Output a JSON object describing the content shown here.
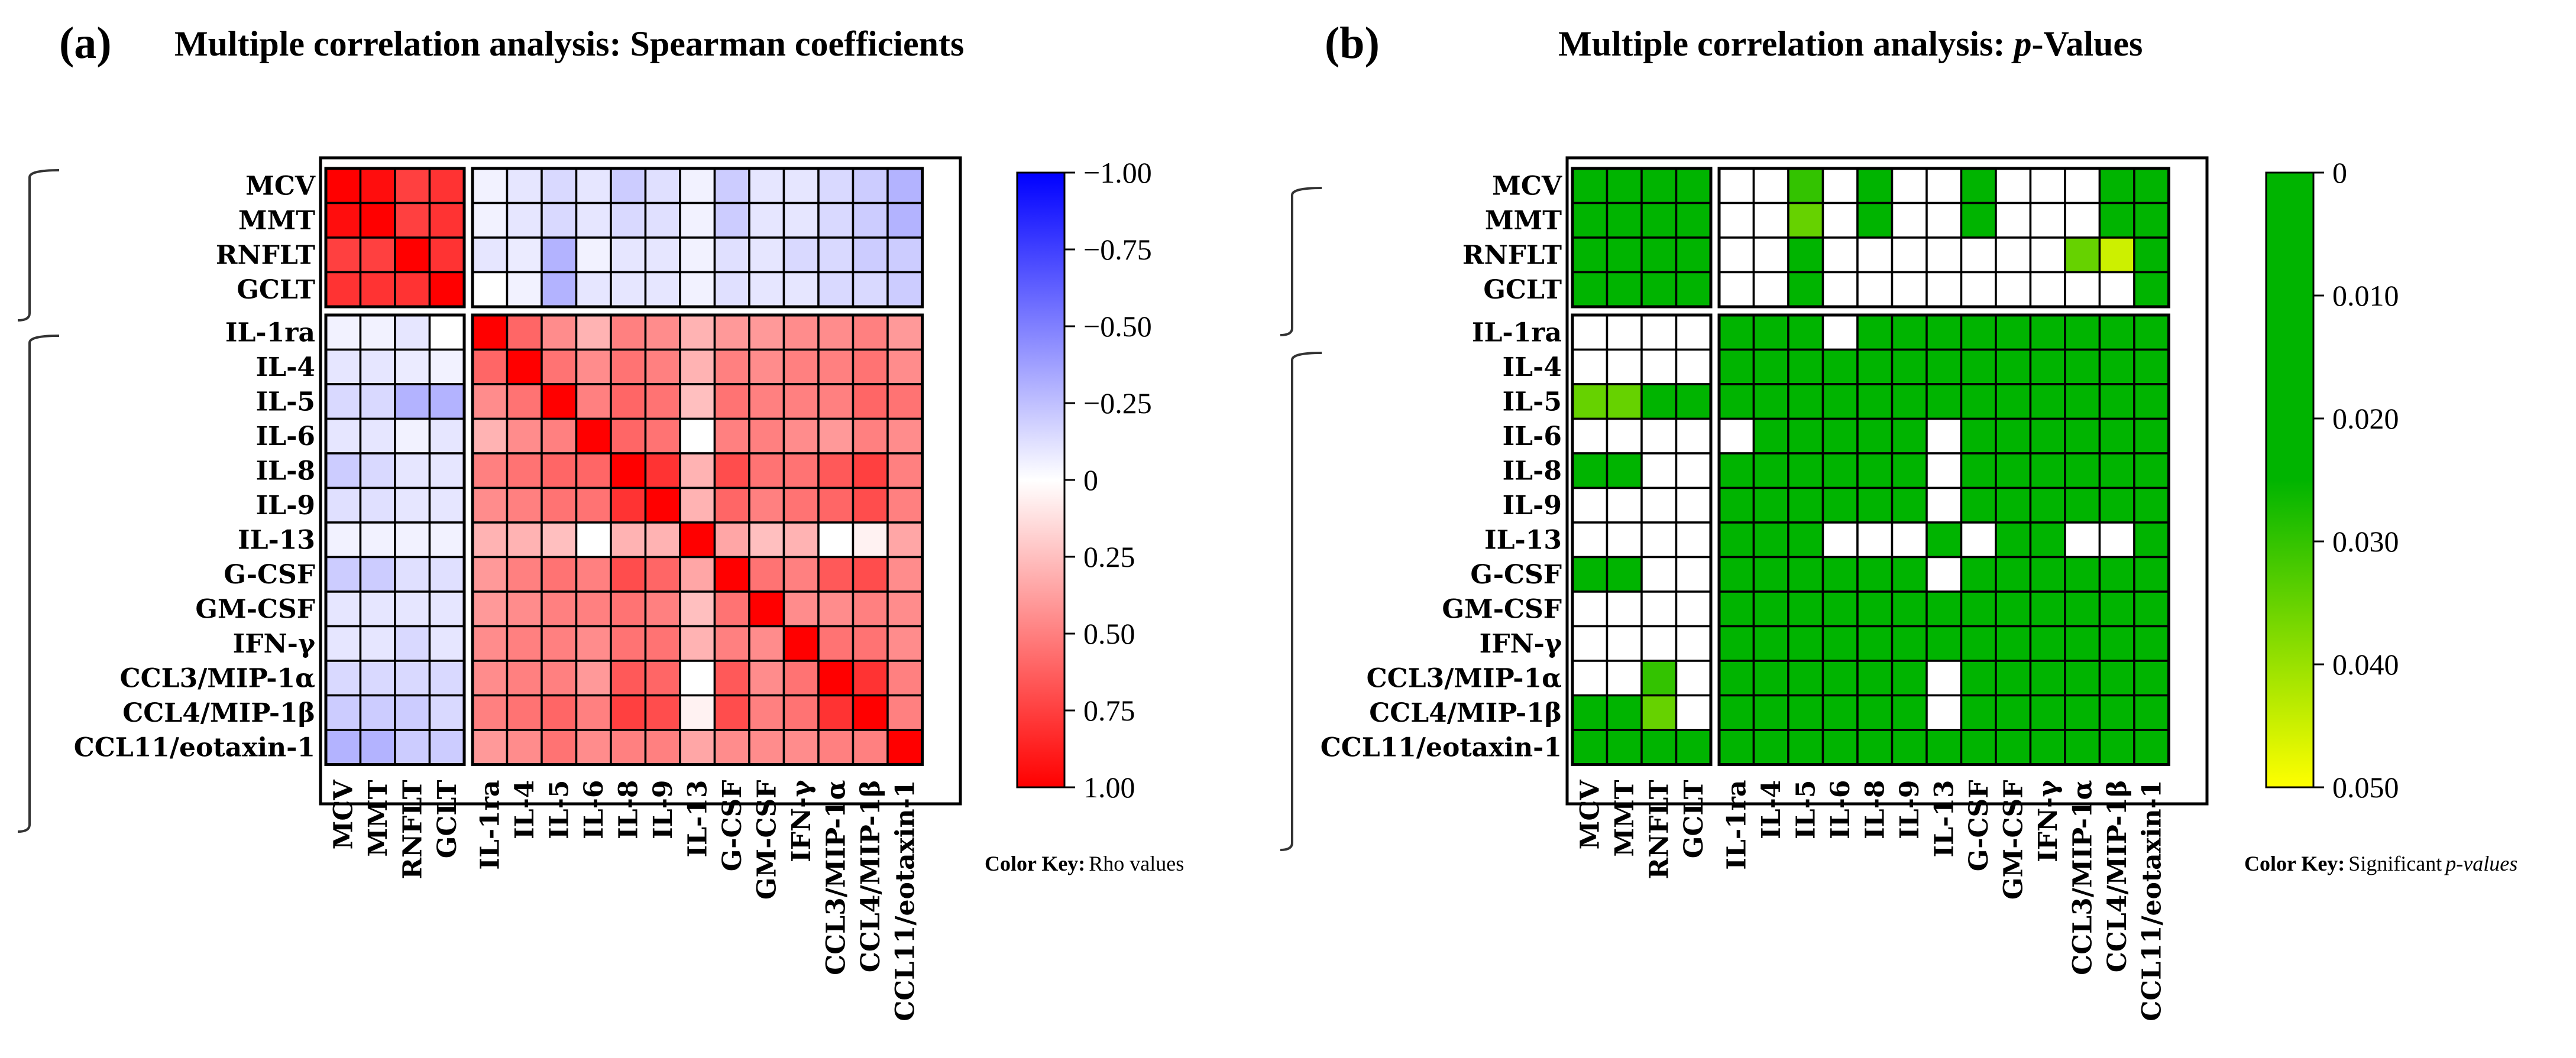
{
  "chart_data": [
    {
      "type": "heatmap",
      "panel": "(a)",
      "title": "Multiple correlation analysis: Spearman coefficients",
      "rows": [
        "MCV",
        "MMT",
        "RNFLT",
        "GCLT",
        "IL-1ra",
        "IL-4",
        "IL-5",
        "IL-6",
        "IL-8",
        "IL-9",
        "IL-13",
        "G-CSF",
        "GM-CSF",
        "IFN-γ",
        "CCL3/MIP-1α",
        "CCL4/MIP-1β",
        "CCL11/eotaxin-1"
      ],
      "cols": [
        "MCV",
        "MMT",
        "RNFLT",
        "GCLT",
        "IL-1ra",
        "IL-4",
        "IL-5",
        "IL-6",
        "IL-8",
        "IL-9",
        "IL-13",
        "G-CSF",
        "GM-CSF",
        "IFN-γ",
        "CCL3/MIP-1α",
        "CCL4/MIP-1β",
        "CCL11/eotaxin-1"
      ],
      "values": [
        [
          1.0,
          0.95,
          0.75,
          0.8,
          -0.05,
          -0.1,
          -0.15,
          -0.1,
          -0.2,
          -0.12,
          -0.05,
          -0.2,
          -0.1,
          -0.1,
          -0.15,
          -0.2,
          -0.3
        ],
        [
          0.95,
          1.0,
          0.75,
          0.8,
          -0.05,
          -0.1,
          -0.15,
          -0.1,
          -0.15,
          -0.12,
          -0.05,
          -0.2,
          -0.1,
          -0.1,
          -0.15,
          -0.2,
          -0.3
        ],
        [
          0.75,
          0.75,
          1.0,
          0.8,
          -0.1,
          -0.08,
          -0.3,
          -0.05,
          -0.1,
          -0.1,
          -0.05,
          -0.12,
          -0.1,
          -0.15,
          -0.15,
          -0.2,
          -0.2
        ],
        [
          0.8,
          0.8,
          0.8,
          1.0,
          0.0,
          -0.05,
          -0.3,
          -0.1,
          -0.1,
          -0.1,
          -0.05,
          -0.12,
          -0.1,
          -0.1,
          -0.15,
          -0.15,
          -0.2
        ],
        [
          -0.05,
          -0.05,
          -0.1,
          0.0,
          1.0,
          0.6,
          0.45,
          0.3,
          0.5,
          0.45,
          0.3,
          0.4,
          0.4,
          0.45,
          0.45,
          0.5,
          0.4
        ],
        [
          -0.1,
          -0.1,
          -0.08,
          -0.05,
          0.6,
          1.0,
          0.55,
          0.45,
          0.55,
          0.5,
          0.3,
          0.5,
          0.45,
          0.5,
          0.5,
          0.55,
          0.45
        ],
        [
          -0.15,
          -0.15,
          -0.3,
          -0.3,
          0.45,
          0.55,
          1.0,
          0.5,
          0.6,
          0.55,
          0.25,
          0.55,
          0.5,
          0.5,
          0.5,
          0.6,
          0.55
        ],
        [
          -0.1,
          -0.1,
          -0.05,
          -0.1,
          0.3,
          0.45,
          0.5,
          1.0,
          0.6,
          0.55,
          0.0,
          0.5,
          0.5,
          0.45,
          0.4,
          0.5,
          0.45
        ],
        [
          -0.2,
          -0.15,
          -0.1,
          -0.1,
          0.5,
          0.55,
          0.6,
          0.6,
          1.0,
          0.8,
          0.3,
          0.7,
          0.55,
          0.55,
          0.65,
          0.75,
          0.5
        ],
        [
          -0.12,
          -0.12,
          -0.1,
          -0.1,
          0.45,
          0.5,
          0.55,
          0.55,
          0.8,
          1.0,
          0.3,
          0.6,
          0.5,
          0.55,
          0.6,
          0.7,
          0.5
        ],
        [
          -0.05,
          -0.05,
          -0.05,
          -0.05,
          0.3,
          0.3,
          0.25,
          0.0,
          0.3,
          0.3,
          1.0,
          0.35,
          0.25,
          0.3,
          0.0,
          0.05,
          0.35
        ],
        [
          -0.2,
          -0.2,
          -0.12,
          -0.12,
          0.4,
          0.5,
          0.55,
          0.5,
          0.7,
          0.6,
          0.35,
          1.0,
          0.55,
          0.5,
          0.65,
          0.7,
          0.45
        ],
        [
          -0.1,
          -0.1,
          -0.1,
          -0.1,
          0.4,
          0.45,
          0.5,
          0.5,
          0.55,
          0.5,
          0.25,
          0.55,
          1.0,
          0.45,
          0.45,
          0.5,
          0.45
        ],
        [
          -0.1,
          -0.1,
          -0.15,
          -0.1,
          0.45,
          0.5,
          0.5,
          0.45,
          0.55,
          0.55,
          0.3,
          0.5,
          0.45,
          1.0,
          0.55,
          0.55,
          0.45
        ],
        [
          -0.15,
          -0.15,
          -0.15,
          -0.15,
          0.45,
          0.5,
          0.5,
          0.4,
          0.65,
          0.6,
          0.0,
          0.65,
          0.45,
          0.55,
          1.0,
          0.8,
          0.5
        ],
        [
          -0.2,
          -0.2,
          -0.2,
          -0.15,
          0.5,
          0.55,
          0.6,
          0.5,
          0.75,
          0.7,
          0.05,
          0.7,
          0.5,
          0.55,
          0.8,
          1.0,
          0.5
        ],
        [
          -0.3,
          -0.3,
          -0.2,
          -0.2,
          0.4,
          0.45,
          0.55,
          0.45,
          0.5,
          0.5,
          0.35,
          0.45,
          0.45,
          0.45,
          0.5,
          0.5,
          1.0
        ]
      ],
      "colorbar": {
        "ticks": [
          "−1.00",
          "−0.75",
          "−0.50",
          "−0.25",
          "0",
          "0.25",
          "0.50",
          "0.75",
          "1.00"
        ],
        "range": [
          -1.0,
          1.0
        ],
        "colors": [
          "#0000ff",
          "#ffffff",
          "#ff0000"
        ]
      },
      "color_key_label": "Color Key:",
      "color_key_text": "Rho values"
    },
    {
      "type": "heatmap",
      "panel": "(b)",
      "title_prefix": "Multiple correlation analysis: ",
      "title_italic": "p",
      "title_suffix": "-Values",
      "rows": [
        "MCV",
        "MMT",
        "RNFLT",
        "GCLT",
        "IL-1ra",
        "IL-4",
        "IL-5",
        "IL-6",
        "IL-8",
        "IL-9",
        "IL-13",
        "G-CSF",
        "GM-CSF",
        "IFN-γ",
        "CCL3/MIP-1α",
        "CCL4/MIP-1β",
        "CCL11/eotaxin-1"
      ],
      "cols": [
        "MCV",
        "MMT",
        "RNFLT",
        "GCLT",
        "IL-1ra",
        "IL-4",
        "IL-5",
        "IL-6",
        "IL-8",
        "IL-9",
        "IL-13",
        "G-CSF",
        "GM-CSF",
        "IFN-γ",
        "CCL3/MIP-1α",
        "CCL4/MIP-1β",
        "CCL11/eotaxin-1"
      ],
      "values": [
        [
          0,
          0,
          0,
          0,
          null,
          null,
          0.03,
          null,
          0.005,
          null,
          null,
          0.005,
          null,
          null,
          null,
          0.005,
          0.005
        ],
        [
          0,
          0,
          0,
          0,
          null,
          null,
          0.035,
          null,
          0.005,
          null,
          null,
          0.005,
          null,
          null,
          null,
          0.005,
          0.005
        ],
        [
          0,
          0,
          0,
          0,
          null,
          null,
          0.005,
          null,
          null,
          null,
          null,
          null,
          null,
          null,
          0.035,
          0.045,
          0.005
        ],
        [
          0,
          0,
          0,
          0,
          null,
          null,
          0.005,
          null,
          null,
          null,
          null,
          null,
          null,
          null,
          null,
          null,
          0.005
        ],
        [
          null,
          null,
          null,
          null,
          0,
          0,
          0,
          null,
          0,
          0,
          0.003,
          0,
          0,
          0,
          0,
          0,
          0
        ],
        [
          null,
          null,
          null,
          null,
          0,
          0,
          0,
          0,
          0,
          0,
          0.003,
          0,
          0,
          0,
          0,
          0,
          0
        ],
        [
          0.035,
          0.035,
          0.01,
          0.005,
          0,
          0,
          0,
          0,
          0,
          0,
          0.003,
          0,
          0,
          0,
          0,
          0,
          0
        ],
        [
          null,
          null,
          null,
          null,
          null,
          0,
          0,
          0,
          0,
          0,
          null,
          0,
          0,
          0,
          0,
          0,
          0
        ],
        [
          0.005,
          0.005,
          null,
          null,
          0,
          0,
          0,
          0,
          0,
          0,
          null,
          0,
          0,
          0,
          0,
          0,
          0
        ],
        [
          null,
          null,
          null,
          null,
          0,
          0,
          0,
          0,
          0,
          0,
          null,
          0,
          0,
          0,
          0,
          0,
          0
        ],
        [
          null,
          null,
          null,
          null,
          0.003,
          0.003,
          0.003,
          null,
          null,
          null,
          0,
          null,
          0,
          0,
          null,
          null,
          0.003
        ],
        [
          0.005,
          0.005,
          null,
          null,
          0,
          0,
          0,
          0,
          0,
          0,
          null,
          0,
          0,
          0,
          0,
          0,
          0
        ],
        [
          null,
          null,
          null,
          null,
          0,
          0,
          0,
          0,
          0,
          0,
          0.003,
          0,
          0,
          0,
          0,
          0,
          0
        ],
        [
          null,
          null,
          null,
          null,
          0,
          0,
          0,
          0,
          0,
          0,
          0.003,
          0,
          0,
          0,
          0,
          0,
          0
        ],
        [
          null,
          null,
          0.03,
          null,
          0,
          0,
          0,
          0,
          0,
          0,
          null,
          0,
          0,
          0,
          0,
          0,
          0
        ],
        [
          0.005,
          0.005,
          0.035,
          null,
          0,
          0,
          0,
          0,
          0,
          0,
          null,
          0,
          0,
          0,
          0,
          0,
          0
        ],
        [
          0.005,
          0.005,
          0.005,
          0.005,
          0,
          0,
          0,
          0,
          0,
          0,
          0.003,
          0,
          0,
          0,
          0,
          0,
          0
        ]
      ],
      "colorbar": {
        "ticks": [
          "0",
          "0.010",
          "0.020",
          "0.030",
          "0.040",
          "0.050"
        ],
        "range": [
          0,
          0.05
        ],
        "colors": [
          "#00b400",
          "#00b400",
          "#ffff00"
        ]
      },
      "color_key_label": "Color Key:",
      "color_key_text": "Significant",
      "color_key_italic": "p-values"
    }
  ]
}
